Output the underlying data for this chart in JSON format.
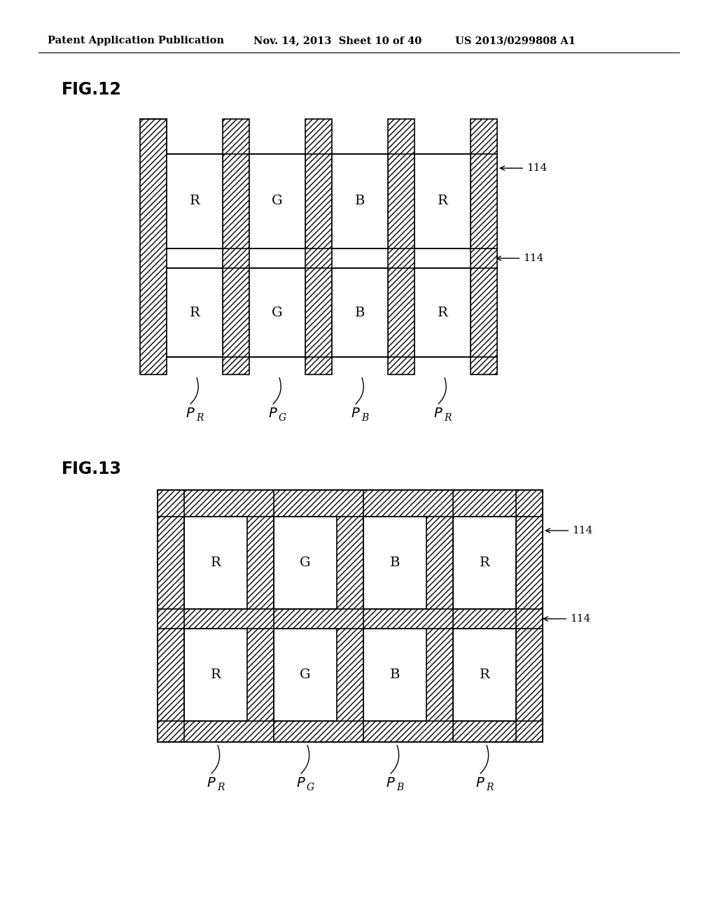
{
  "header_left": "Patent Application Publication",
  "header_mid": "Nov. 14, 2013  Sheet 10 of 40",
  "header_right": "US 2013/0299808 A1",
  "fig12_label": "FIG.12",
  "fig13_label": "FIG.13",
  "label_114": "114",
  "col_labels": [
    "R",
    "G",
    "B",
    "R"
  ],
  "col_subs": [
    "R",
    "G",
    "B",
    "R"
  ],
  "background_color": "#ffffff"
}
